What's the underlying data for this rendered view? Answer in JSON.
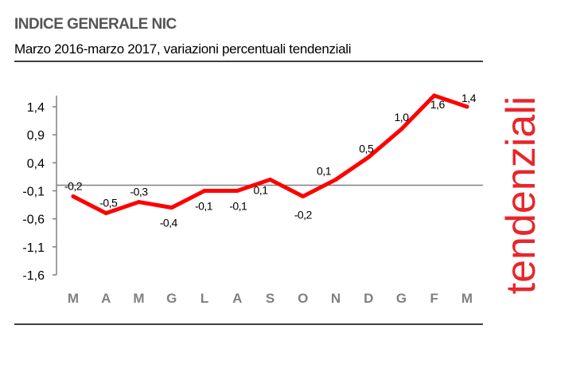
{
  "title": "INDICE GENERALE NIC",
  "subtitle": "Marzo 2016-marzo 2017, variazioni percentuali tendenziali",
  "side_label": "tendenziali",
  "chart_data": {
    "type": "line",
    "title": "INDICE GENERALE NIC",
    "subtitle": "Marzo 2016-marzo 2017, variazioni percentuali tendenziali",
    "categories": [
      "M",
      "A",
      "M",
      "G",
      "L",
      "A",
      "S",
      "O",
      "N",
      "D",
      "G",
      "F",
      "M"
    ],
    "values": [
      -0.2,
      -0.5,
      -0.3,
      -0.4,
      -0.1,
      -0.1,
      0.1,
      -0.2,
      0.1,
      0.5,
      1.0,
      1.6,
      1.4
    ],
    "data_labels": [
      "-0,2",
      "-0,5",
      "-0,3",
      "-0,4",
      "-0,1",
      "-0,1",
      "0,1",
      "-0,2",
      "0,1",
      "0,5",
      "1,0",
      "1,6",
      "1,4"
    ],
    "yticks": [
      1.4,
      0.9,
      0.4,
      -0.1,
      -0.6,
      -1.1,
      -1.6
    ],
    "ytick_labels": [
      "1,4",
      "0,9",
      "0,4",
      "-0,1",
      "-0,6",
      "-1,1",
      "-1,6"
    ],
    "ylim": [
      -1.6,
      1.6
    ],
    "reference_line": 0,
    "grid": false,
    "colors": {
      "line": "#ff0000",
      "axis": "#808080",
      "category_labels": "#808080",
      "side_label": "#e8262a"
    }
  }
}
